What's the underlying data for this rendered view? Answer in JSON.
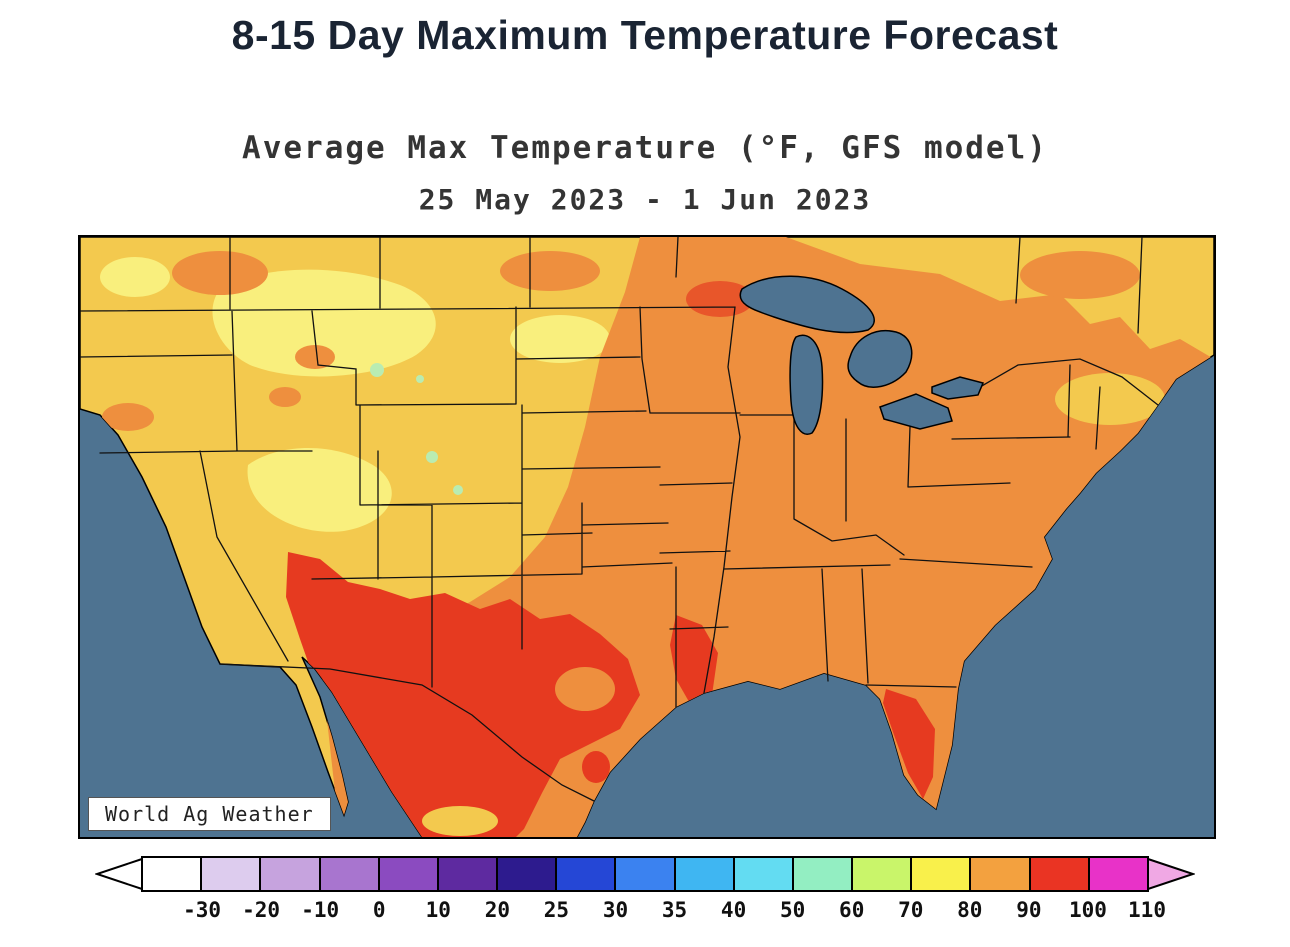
{
  "header": {
    "title": "8-15 Day Maximum Temperature Forecast"
  },
  "map": {
    "title": "Average Max Temperature (°F, GFS model)",
    "subtitle": "25 May 2023 - 1 Jun 2023",
    "watermark": "World Ag Weather"
  },
  "colors": {
    "ocean": "#4e7391",
    "land_gold": "#f3c94e",
    "land_pale_yellow": "#f9ef7d",
    "land_orange": "#ee8f3e",
    "land_red": "#e63a20",
    "coast_red": "#e8562a",
    "land_green": "#b9ecb2",
    "land_magenta": "#e02fc0",
    "border_line": "#111111"
  },
  "legend": {
    "tick_labels": [
      "-30",
      "-20",
      "-10",
      "0",
      "10",
      "20",
      "25",
      "30",
      "35",
      "40",
      "50",
      "60",
      "70",
      "80",
      "90",
      "100",
      "110"
    ],
    "cell_colors": [
      "#ffffff",
      "#ddccee",
      "#c6a3de",
      "#a875cf",
      "#8b4bc0",
      "#5e2aa0",
      "#2d1b8e",
      "#2547d6",
      "#3b82f0",
      "#3fb6f2",
      "#63dcf2",
      "#93eec2",
      "#c9f56a",
      "#f9f04b",
      "#f3a13f",
      "#ea3423",
      "#e832c8"
    ],
    "left_arrow_color": "#ffffff",
    "right_arrow_color": "#f0a8e4"
  }
}
